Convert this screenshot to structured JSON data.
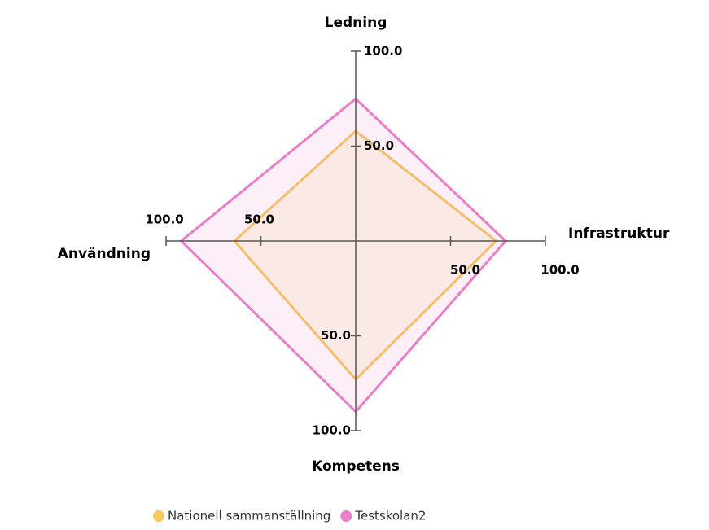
{
  "chart_data": {
    "type": "radar",
    "categories": [
      "Ledning",
      "Infrastruktur",
      "Kompetens",
      "Användning"
    ],
    "series": [
      {
        "name": "Nationell sammanställning",
        "color": "#f5c860",
        "values": [
          58,
          74,
          73,
          64
        ]
      },
      {
        "name": "Testskolan2",
        "color": "#e880c8",
        "values": [
          75,
          79,
          90,
          92
        ]
      }
    ],
    "rlim": [
      0,
      100
    ],
    "rticks": [
      {
        "value": 50,
        "label": "50.0"
      },
      {
        "value": 100,
        "label": "100.0"
      }
    ],
    "legend": "bottom"
  }
}
